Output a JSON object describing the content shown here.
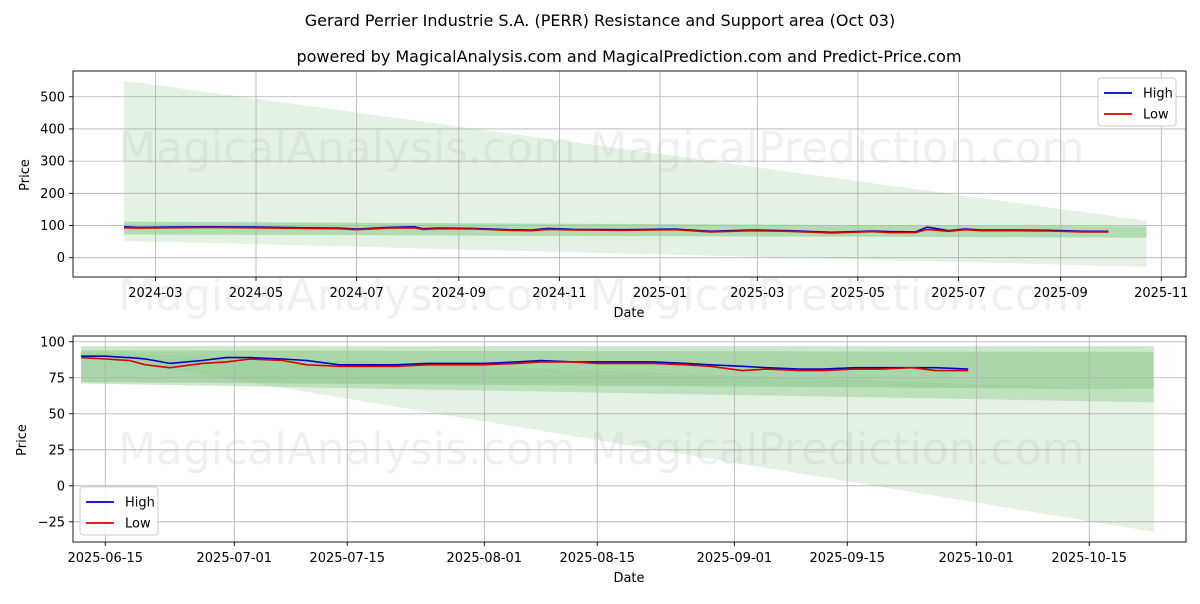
{
  "title": "Gerard Perrier Industrie S.A. (PERR) Resistance and Support area (Oct 03)",
  "subtitle": "powered by MagicalAnalysis.com and MagicalPrediction.com and Predict-Price.com",
  "watermarks": [
    "MagicalAnalysis.com",
    "MagicalPrediction.com"
  ],
  "colors": {
    "high": "#0000cc",
    "low": "#dd0000",
    "band": "#5aac5a"
  },
  "chart_data": [
    {
      "type": "line",
      "xlabel": "Date",
      "ylabel": "Price",
      "ylim": [
        -60,
        580
      ],
      "yticks": [
        0,
        100,
        200,
        300,
        400,
        500
      ],
      "xlim": [
        "2024-01-11",
        "2025-11-16"
      ],
      "xticks": [
        "2024-03",
        "2024-05",
        "2024-07",
        "2024-09",
        "2024-11",
        "2025-01",
        "2025-03",
        "2025-05",
        "2025-07",
        "2025-09",
        "2025-11"
      ],
      "legend": {
        "position": "top-right",
        "entries": [
          "High",
          "Low"
        ]
      },
      "bands": [
        {
          "start": "2024-02-11",
          "end": "2025-10-23",
          "upper": [
            550,
            115
          ],
          "lower": [
            52,
            -28
          ]
        },
        {
          "start": "2024-02-11",
          "end": "2025-10-23",
          "upper": [
            112,
            97
          ],
          "lower": [
            72,
            62
          ]
        }
      ],
      "series": [
        {
          "name": "High",
          "x": [
            "2024-02-11",
            "2024-02-20",
            "2024-03-10",
            "2024-04-01",
            "2024-05-01",
            "2024-06-01",
            "2024-06-20",
            "2024-07-01",
            "2024-07-20",
            "2024-08-05",
            "2024-08-10",
            "2024-08-20",
            "2024-09-10",
            "2024-10-01",
            "2024-10-15",
            "2024-10-25",
            "2024-11-10",
            "2024-12-10",
            "2025-01-10",
            "2025-02-01",
            "2025-02-25",
            "2025-03-20",
            "2025-04-15",
            "2025-05-10",
            "2025-05-20",
            "2025-06-05",
            "2025-06-12",
            "2025-06-25",
            "2025-07-05",
            "2025-07-15",
            "2025-08-05",
            "2025-08-25",
            "2025-09-15",
            "2025-09-30"
          ],
          "values": [
            96,
            94,
            95,
            96,
            95,
            93,
            92,
            89,
            94,
            96,
            90,
            92,
            91,
            87,
            86,
            91,
            88,
            87,
            89,
            82,
            86,
            84,
            79,
            83,
            81,
            80,
            95,
            84,
            89,
            86,
            86,
            85,
            82,
            82
          ]
        },
        {
          "name": "Low",
          "x": [
            "2024-02-11",
            "2024-02-20",
            "2024-03-10",
            "2024-04-01",
            "2024-05-01",
            "2024-06-01",
            "2024-06-20",
            "2024-07-01",
            "2024-07-20",
            "2024-08-05",
            "2024-08-10",
            "2024-08-20",
            "2024-09-10",
            "2024-10-01",
            "2024-10-15",
            "2024-10-25",
            "2024-11-10",
            "2024-12-10",
            "2025-01-10",
            "2025-02-01",
            "2025-02-25",
            "2025-03-20",
            "2025-04-15",
            "2025-05-10",
            "2025-05-20",
            "2025-06-05",
            "2025-06-12",
            "2025-06-25",
            "2025-07-05",
            "2025-07-15",
            "2025-08-05",
            "2025-08-25",
            "2025-09-15",
            "2025-09-30"
          ],
          "values": [
            93,
            92,
            93,
            94,
            93,
            91,
            90,
            87,
            92,
            93,
            88,
            90,
            89,
            85,
            84,
            88,
            86,
            85,
            87,
            80,
            84,
            82,
            77,
            81,
            78,
            78,
            88,
            82,
            87,
            84,
            84,
            83,
            80,
            80
          ]
        }
      ]
    },
    {
      "type": "line",
      "xlabel": "Date",
      "ylabel": "Price",
      "ylim": [
        -39,
        104
      ],
      "yticks": [
        -25,
        0,
        25,
        50,
        75,
        100
      ],
      "xlim": [
        "2025-06-11",
        "2025-10-27"
      ],
      "xticks": [
        "2025-06-15",
        "2025-07-01",
        "2025-07-15",
        "2025-08-01",
        "2025-08-15",
        "2025-09-01",
        "2025-09-15",
        "2025-10-01",
        "2025-10-15"
      ],
      "legend": {
        "position": "bottom-left",
        "entries": [
          "High",
          "Low"
        ]
      },
      "bands": [
        {
          "start": "2025-06-12",
          "end": "2025-10-23",
          "upper": [
            93,
            66
          ],
          "lower": [
            91,
            -32
          ]
        },
        {
          "start": "2025-06-12",
          "end": "2025-10-23",
          "upper": [
            97,
            97
          ],
          "lower": [
            71,
            58
          ]
        },
        {
          "start": "2025-06-12",
          "end": "2025-10-23",
          "upper": [
            94,
            93
          ],
          "lower": [
            72,
            67
          ]
        }
      ],
      "series": [
        {
          "name": "High",
          "x": [
            "2025-06-12",
            "2025-06-15",
            "2025-06-18",
            "2025-06-20",
            "2025-06-23",
            "2025-06-27",
            "2025-06-30",
            "2025-07-03",
            "2025-07-07",
            "2025-07-10",
            "2025-07-14",
            "2025-07-17",
            "2025-07-21",
            "2025-07-25",
            "2025-07-29",
            "2025-08-01",
            "2025-08-05",
            "2025-08-08",
            "2025-08-12",
            "2025-08-15",
            "2025-08-19",
            "2025-08-22",
            "2025-08-26",
            "2025-08-29",
            "2025-09-02",
            "2025-09-05",
            "2025-09-09",
            "2025-09-12",
            "2025-09-16",
            "2025-09-19",
            "2025-09-23",
            "2025-09-26",
            "2025-09-30"
          ],
          "values": [
            90,
            90,
            89,
            88,
            85,
            87,
            89,
            89,
            88,
            87,
            84,
            84,
            84,
            85,
            85,
            85,
            86,
            87,
            86,
            86,
            86,
            86,
            85,
            84,
            83,
            82,
            81,
            81,
            82,
            82,
            82,
            82,
            81
          ]
        },
        {
          "name": "Low",
          "x": [
            "2025-06-12",
            "2025-06-15",
            "2025-06-18",
            "2025-06-20",
            "2025-06-23",
            "2025-06-27",
            "2025-06-30",
            "2025-07-03",
            "2025-07-07",
            "2025-07-10",
            "2025-07-14",
            "2025-07-17",
            "2025-07-21",
            "2025-07-25",
            "2025-07-29",
            "2025-08-01",
            "2025-08-05",
            "2025-08-08",
            "2025-08-12",
            "2025-08-15",
            "2025-08-19",
            "2025-08-22",
            "2025-08-26",
            "2025-08-29",
            "2025-09-02",
            "2025-09-05",
            "2025-09-09",
            "2025-09-12",
            "2025-09-16",
            "2025-09-19",
            "2025-09-23",
            "2025-09-26",
            "2025-09-30"
          ],
          "values": [
            89,
            88,
            87,
            84,
            82,
            85,
            86,
            88,
            87,
            84,
            83,
            83,
            83,
            84,
            84,
            84,
            85,
            86,
            86,
            85,
            85,
            85,
            84,
            83,
            80,
            81,
            80,
            80,
            81,
            81,
            82,
            80,
            80
          ]
        }
      ]
    }
  ]
}
